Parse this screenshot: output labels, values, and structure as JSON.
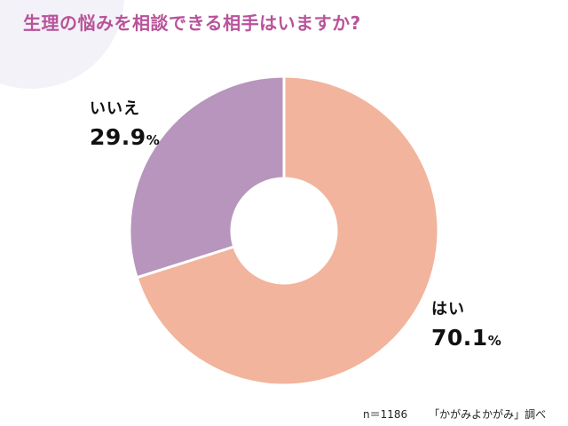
{
  "chart_data": {
    "type": "pie",
    "title": "生理の悩みを相談できる相手はいますか?",
    "categories": [
      "はい",
      "いいえ"
    ],
    "values": [
      70.1,
      29.9
    ],
    "value_labels": [
      "70.1",
      "29.9"
    ],
    "unit": "%",
    "colors": [
      "#f2b49c",
      "#b795bd"
    ],
    "donut": true,
    "legend": "none",
    "sample_size": "n＝1186",
    "source": "「かがみよかがみ」調べ"
  },
  "colors": {
    "title": "#b8539a",
    "corner_blob": "#f3f2f8",
    "slice_separator": "#ffffff"
  }
}
